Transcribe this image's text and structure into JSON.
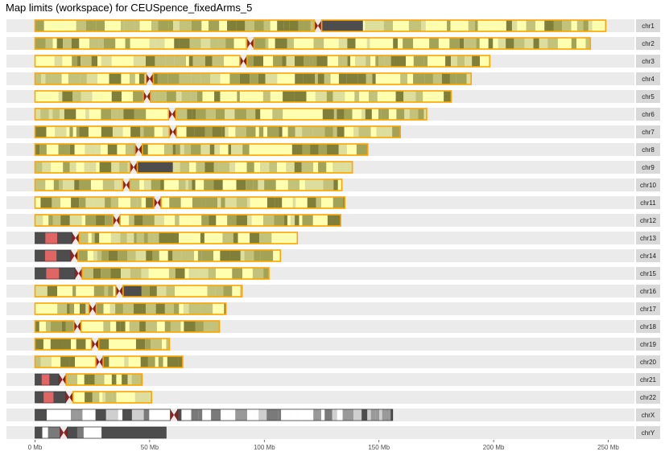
{
  "chart_data": {
    "type": "ideogram",
    "title": "Map limits (workspace) for CEUSpence_fixedArms_5",
    "xlabel": "",
    "ylabel": "",
    "x_unit": "Mb",
    "xlim": [
      0,
      255
    ],
    "x_ticks": [
      0,
      50,
      100,
      150,
      200,
      250
    ],
    "x_tick_labels": [
      "0 Mb",
      "50 Mb",
      "100 Mb",
      "150 Mb",
      "200 Mb",
      "250 Mb"
    ],
    "grid": false,
    "legend": "none",
    "colors": {
      "strip_bg": "#ebebeb",
      "label_bg": "#d9d9d9",
      "centromere": "#8b2323",
      "map_limit": "#ffa500",
      "gpos100": "#7f7f3a",
      "gpos75": "#a3a358",
      "gpos50": "#c2c27a",
      "gpos25": "#dede9c",
      "gneg": "#ffffb0",
      "acen_dark": "#4d4d4d",
      "stalk": "#e06666"
    },
    "chromosomes": [
      {
        "name": "chr1",
        "length": 248.9,
        "centromere": 123.4,
        "map_start": 0.0,
        "map_end": 248.9
      },
      {
        "name": "chr2",
        "length": 242.2,
        "centromere": 93.9,
        "map_start": 0.0,
        "map_end": 242.2
      },
      {
        "name": "chr3",
        "length": 198.3,
        "centromere": 90.9,
        "map_start": 0.0,
        "map_end": 198.3
      },
      {
        "name": "chr4",
        "length": 190.2,
        "centromere": 50.0,
        "map_start": 0.0,
        "map_end": 190.2
      },
      {
        "name": "chr5",
        "length": 181.5,
        "centromere": 48.8,
        "map_start": 0.0,
        "map_end": 181.5
      },
      {
        "name": "chr6",
        "length": 170.8,
        "centromere": 59.8,
        "map_start": 0.0,
        "map_end": 170.8
      },
      {
        "name": "chr7",
        "length": 159.3,
        "centromere": 60.1,
        "map_start": 0.0,
        "map_end": 159.3
      },
      {
        "name": "chr8",
        "length": 145.1,
        "centromere": 45.2,
        "map_start": 0.0,
        "map_end": 145.1
      },
      {
        "name": "chr9",
        "length": 138.4,
        "centromere": 43.0,
        "map_start": 0.0,
        "map_end": 138.4
      },
      {
        "name": "chr10",
        "length": 133.8,
        "centromere": 39.8,
        "map_start": 0.0,
        "map_end": 133.8
      },
      {
        "name": "chr11",
        "length": 135.1,
        "centromere": 53.4,
        "map_start": 0.0,
        "map_end": 135.1
      },
      {
        "name": "chr12",
        "length": 133.3,
        "centromere": 35.5,
        "map_start": 0.0,
        "map_end": 133.3
      },
      {
        "name": "chr13",
        "length": 114.4,
        "centromere": 17.7,
        "map_start": 18.0,
        "map_end": 114.4
      },
      {
        "name": "chr14",
        "length": 107.0,
        "centromere": 17.2,
        "map_start": 17.5,
        "map_end": 107.0
      },
      {
        "name": "chr15",
        "length": 102.0,
        "centromere": 19.0,
        "map_start": 19.5,
        "map_end": 102.0
      },
      {
        "name": "chr16",
        "length": 90.3,
        "centromere": 36.8,
        "map_start": 0.0,
        "map_end": 90.3
      },
      {
        "name": "chr17",
        "length": 83.3,
        "centromere": 25.1,
        "map_start": 0.0,
        "map_end": 83.3
      },
      {
        "name": "chr18",
        "length": 80.4,
        "centromere": 18.5,
        "map_start": 0.0,
        "map_end": 80.4
      },
      {
        "name": "chr19",
        "length": 58.6,
        "centromere": 26.2,
        "map_start": 0.0,
        "map_end": 58.6
      },
      {
        "name": "chr20",
        "length": 64.4,
        "centromere": 28.1,
        "map_start": 0.0,
        "map_end": 64.4
      },
      {
        "name": "chr21",
        "length": 46.7,
        "centromere": 12.0,
        "map_start": 13.0,
        "map_end": 46.7
      },
      {
        "name": "chr22",
        "length": 50.8,
        "centromere": 15.0,
        "map_start": 16.0,
        "map_end": 50.8
      },
      {
        "name": "chrX",
        "length": 156.0,
        "centromere": 60.6,
        "map_start": null,
        "map_end": null
      },
      {
        "name": "chrY",
        "length": 57.2,
        "centromere": 12.5,
        "map_start": null,
        "map_end": null
      }
    ]
  }
}
